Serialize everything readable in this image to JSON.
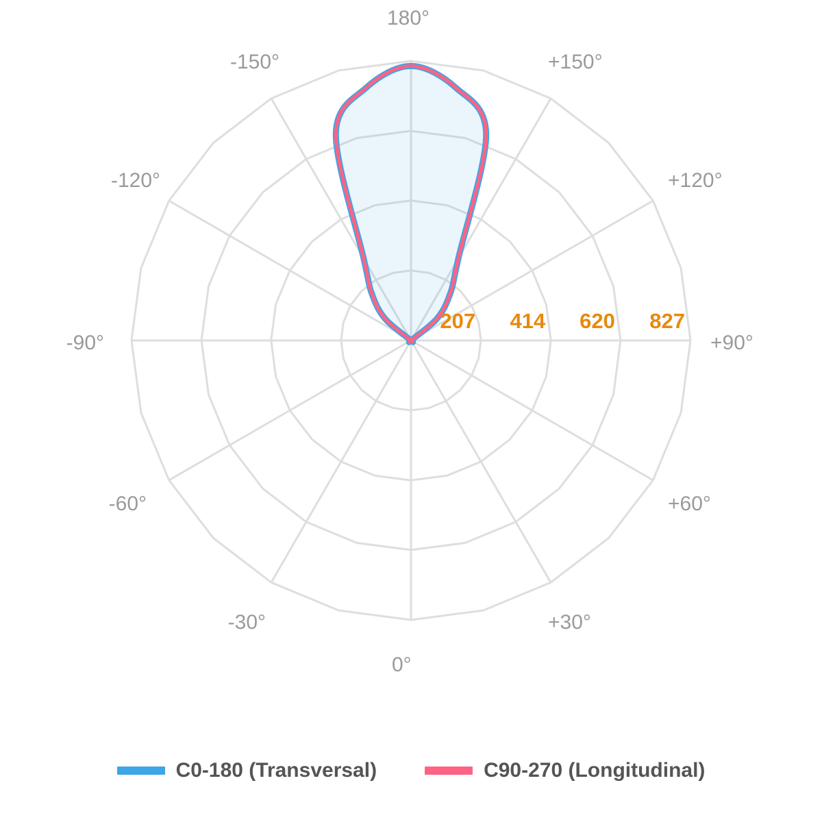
{
  "chart_data": {
    "type": "polar",
    "title": "",
    "angle_labels": [
      "0°",
      "+30°",
      "+60°",
      "+90°",
      "+120°",
      "+150°",
      "180°",
      "-150°",
      "-120°",
      "-90°",
      "-60°",
      "-30°"
    ],
    "radial_ticks": [
      207,
      414,
      620,
      827
    ],
    "rmax": 827,
    "grid": true,
    "legend_position": "bottom",
    "angles_deg": [
      0,
      10,
      20,
      30,
      40,
      50,
      60,
      70,
      80,
      90,
      100,
      110,
      120,
      130,
      140,
      150,
      160,
      170,
      180
    ],
    "series": [
      {
        "name": "C0-180 (Transversal)",
        "color": "#3ea6e6",
        "values": [
          0,
          0,
          0,
          0,
          0,
          0,
          0,
          0,
          0,
          0,
          0,
          0,
          0,
          100,
          180,
          280,
          650,
          760,
          812
        ]
      },
      {
        "name": "C90-270 (Longitudinal)",
        "color": "#ff6384",
        "values": [
          0,
          0,
          0,
          0,
          0,
          0,
          0,
          0,
          0,
          0,
          0,
          0,
          0,
          100,
          180,
          280,
          650,
          760,
          812
        ]
      }
    ]
  }
}
